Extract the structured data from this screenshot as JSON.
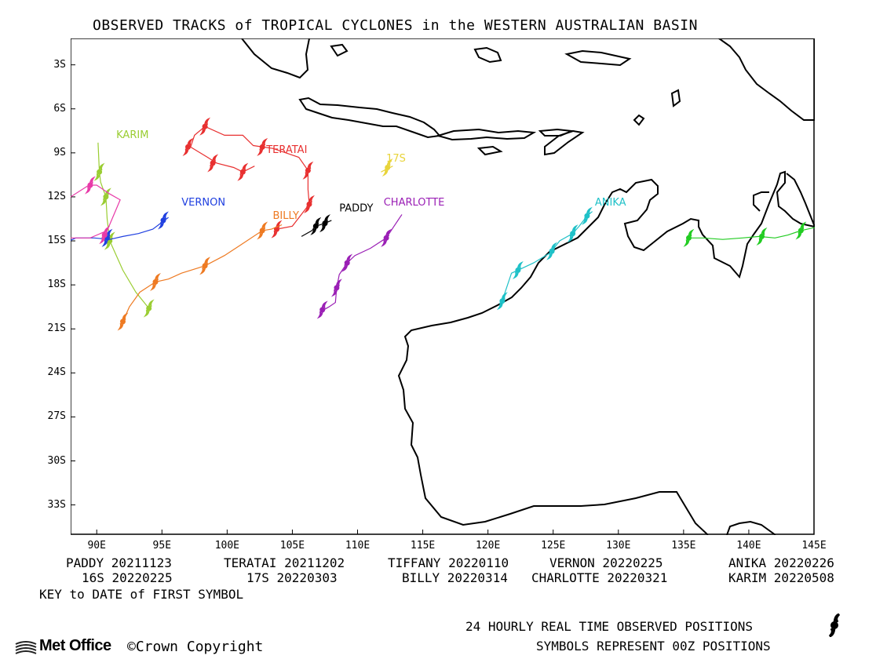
{
  "title": "OBSERVED TRACKS of TROPICAL CYCLONES in the WESTERN AUSTRALIAN BASIN",
  "lat_ticks": [
    "3S",
    "6S",
    "9S",
    "12S",
    "15S",
    "18S",
    "21S",
    "24S",
    "27S",
    "30S",
    "33S"
  ],
  "lon_ticks": [
    "90E",
    "95E",
    "100E",
    "105E",
    "110E",
    "115E",
    "120E",
    "125E",
    "130E",
    "135E",
    "140E",
    "145E"
  ],
  "key_rows": [
    [
      "PADDY 20211123",
      "TERATAI 20211202",
      "TIFFANY 20220110",
      "VERNON 20220225",
      "ANIKA 20220226"
    ],
    [
      "16S 20220225",
      "17S 20220303",
      "BILLY 20220314",
      "CHARLOTTE 20220321",
      "KARIM 20220508"
    ]
  ],
  "key_note": "KEY to DATE of FIRST SYMBOL",
  "footer": {
    "line1": "24 HOURLY REAL TIME OBSERVED POSITIONS",
    "line2": "SYMBOLS REPRESENT 00Z POSITIONS",
    "logo": "Met Office",
    "copyright": "©Crown Copyright"
  },
  "map": {
    "extent": {
      "lon": [
        88,
        145
      ],
      "lat": [
        -1.2,
        -35
      ]
    },
    "storms": [
      {
        "name": "KARIM",
        "color": "#9acd32",
        "label_at": [
          91.5,
          -8
        ],
        "track": [
          [
            90.1,
            -8.3
          ],
          [
            90.2,
            -10.3
          ],
          [
            90.3,
            -11.0
          ],
          [
            90.7,
            -12.0
          ],
          [
            90.8,
            -13.5
          ],
          [
            91.0,
            -15.0
          ],
          [
            92.0,
            -17.0
          ],
          [
            93.0,
            -18.5
          ],
          [
            94.0,
            -19.6
          ]
        ],
        "symbols": [
          [
            90.2,
            -10.3
          ],
          [
            90.7,
            -12.0
          ],
          [
            91.0,
            -15.0
          ],
          [
            94.0,
            -19.6
          ]
        ]
      },
      {
        "name": "TERATAI",
        "color": "#e83030",
        "label_at": [
          103.0,
          -9.0
        ],
        "track": [
          [
            102.1,
            -9.9
          ],
          [
            101.2,
            -10.3
          ],
          [
            100.5,
            -10.0
          ],
          [
            99.2,
            -9.7
          ],
          [
            98.5,
            -9.3
          ],
          [
            97.2,
            -8.6
          ],
          [
            97.5,
            -7.8
          ],
          [
            98.3,
            -7.2
          ],
          [
            99.8,
            -7.8
          ],
          [
            101.2,
            -7.8
          ],
          [
            102.0,
            -8.5
          ],
          [
            103.5,
            -8.7
          ],
          [
            104.5,
            -9.0
          ],
          [
            105.5,
            -9.3
          ],
          [
            106.2,
            -10.2
          ],
          [
            106.2,
            -11.5
          ],
          [
            106.3,
            -12.5
          ],
          [
            105.0,
            -14.0
          ],
          [
            103.8,
            -14.2
          ]
        ],
        "symbols": [
          [
            101.2,
            -10.3
          ],
          [
            98.9,
            -9.7
          ],
          [
            97.0,
            -8.6
          ],
          [
            98.3,
            -7.2
          ],
          [
            102.7,
            -8.6
          ],
          [
            106.2,
            -10.2
          ],
          [
            106.3,
            -12.5
          ],
          [
            103.8,
            -14.2
          ]
        ]
      },
      {
        "name": "17S",
        "color": "#e8d43a",
        "label_at": [
          112.2,
          -9.6
        ],
        "track": [
          [
            111.8,
            -10.3
          ],
          [
            112.7,
            -9.9
          ]
        ],
        "symbols": [
          [
            112.3,
            -10.0
          ]
        ]
      },
      {
        "name": "VERNON",
        "color": "#2040e0",
        "label_at": [
          96.5,
          -12.6
        ],
        "track": [
          [
            95.5,
            -13.4
          ],
          [
            95.2,
            -13.6
          ],
          [
            94.3,
            -14.2
          ],
          [
            93.2,
            -14.5
          ],
          [
            92.0,
            -14.7
          ],
          [
            91.0,
            -14.9
          ],
          [
            89.8,
            -14.8
          ],
          [
            88.4,
            -14.8
          ],
          [
            87.9,
            -15.0
          ],
          [
            87.0,
            -16.5
          ],
          [
            86.0,
            -18.0
          ],
          [
            85.0,
            -19.5
          ],
          [
            84.5,
            -20.5
          ]
        ],
        "symbols": [
          [
            95.1,
            -13.6
          ],
          [
            90.8,
            -14.8
          ]
        ]
      },
      {
        "name": "BILLY",
        "color": "#ee7a22",
        "label_at": [
          103.5,
          -13.5
        ],
        "track": [
          [
            104.2,
            -13.9
          ],
          [
            103.4,
            -14.2
          ],
          [
            102.7,
            -14.3
          ],
          [
            101.0,
            -15.3
          ],
          [
            99.8,
            -16.0
          ],
          [
            98.3,
            -16.7
          ],
          [
            96.5,
            -17.2
          ],
          [
            95.5,
            -17.6
          ],
          [
            94.5,
            -17.8
          ],
          [
            93.3,
            -18.5
          ],
          [
            92.5,
            -19.5
          ],
          [
            92.0,
            -20.5
          ]
        ],
        "symbols": [
          [
            102.7,
            -14.3
          ],
          [
            98.3,
            -16.7
          ],
          [
            94.5,
            -17.8
          ],
          [
            92.0,
            -20.5
          ]
        ]
      },
      {
        "name": "PADDY",
        "color": "#000000",
        "label_at": [
          108.6,
          -13.0
        ],
        "track": [
          [
            108.0,
            -13.6
          ],
          [
            107.5,
            -13.8
          ],
          [
            106.8,
            -14.0
          ],
          [
            106.5,
            -14.3
          ],
          [
            105.7,
            -14.7
          ]
        ],
        "symbols": [
          [
            107.5,
            -13.8
          ],
          [
            106.8,
            -14.0
          ]
        ]
      },
      {
        "name": "CHARLOTTE",
        "color": "#9a1fb5",
        "label_at": [
          112.0,
          -12.6
        ],
        "track": [
          [
            113.4,
            -13.2
          ],
          [
            112.8,
            -14.0
          ],
          [
            112.2,
            -14.8
          ],
          [
            111.0,
            -15.5
          ],
          [
            109.8,
            -16.0
          ],
          [
            109.2,
            -16.5
          ],
          [
            108.6,
            -17.3
          ],
          [
            108.4,
            -18.2
          ],
          [
            108.3,
            -19.2
          ],
          [
            107.8,
            -19.5
          ],
          [
            107.2,
            -19.8
          ]
        ],
        "symbols": [
          [
            112.2,
            -14.8
          ],
          [
            109.2,
            -16.5
          ],
          [
            108.4,
            -18.2
          ],
          [
            107.3,
            -19.7
          ]
        ]
      },
      {
        "name": "ANIKA",
        "color": "#1fc1c8",
        "label_at": [
          128.2,
          -12.6
        ],
        "track": [
          [
            128.0,
            -13.0
          ],
          [
            127.6,
            -13.3
          ],
          [
            127.0,
            -14.0
          ],
          [
            126.5,
            -14.5
          ],
          [
            125.5,
            -15.0
          ],
          [
            124.8,
            -15.8
          ],
          [
            123.5,
            -16.5
          ],
          [
            122.3,
            -17.0
          ],
          [
            121.8,
            -17.2
          ],
          [
            121.5,
            -18.0
          ],
          [
            121.2,
            -18.8
          ],
          [
            121.0,
            -19.5
          ]
        ],
        "symbols": [
          [
            127.6,
            -13.3
          ],
          [
            126.5,
            -14.5
          ],
          [
            124.9,
            -15.7
          ],
          [
            122.3,
            -17.0
          ],
          [
            121.1,
            -19.1
          ]
        ]
      },
      {
        "name": "16S",
        "color": "#22cc22",
        "label_at": [
          0,
          0
        ],
        "track": [
          [
            135.3,
            -14.8
          ],
          [
            136.5,
            -14.8
          ],
          [
            138.0,
            -14.9
          ],
          [
            139.5,
            -14.8
          ],
          [
            140.8,
            -14.7
          ],
          [
            142.0,
            -14.8
          ],
          [
            143.0,
            -14.6
          ],
          [
            144.0,
            -14.3
          ],
          [
            145.5,
            -14.0
          ]
        ],
        "symbols": [
          [
            135.4,
            -14.8
          ],
          [
            141.0,
            -14.7
          ],
          [
            144.0,
            -14.3
          ]
        ]
      },
      {
        "name": "TIFFANY",
        "color": "#e83aa8",
        "label_at": [
          0,
          0
        ],
        "track": [
          [
            88.0,
            -12.0
          ],
          [
            89.4,
            -11.2
          ],
          [
            90.0,
            -11.2
          ],
          [
            91.0,
            -11.8
          ],
          [
            91.8,
            -12.2
          ],
          [
            90.8,
            -14.3
          ],
          [
            89.5,
            -14.8
          ],
          [
            88.0,
            -14.8
          ]
        ],
        "symbols": [
          [
            89.5,
            -11.2
          ],
          [
            90.6,
            -14.6
          ]
        ]
      }
    ]
  }
}
